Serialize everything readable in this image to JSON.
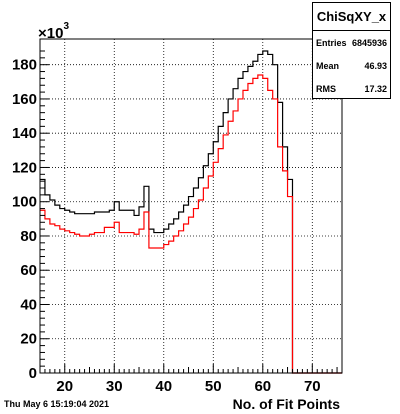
{
  "stats": {
    "title": "ChiSqXY_x",
    "rows": [
      {
        "key": "Entries",
        "value": "6845936"
      },
      {
        "key": "Mean",
        "value": "46.93"
      },
      {
        "key": "RMS",
        "value": "17.32"
      }
    ]
  },
  "footer": {
    "date": "Thu May  6 15:19:04 2021",
    "xtitle": "No. of Fit Points"
  },
  "axis": {
    "exponent_base": "×10",
    "exponent_power": "3"
  },
  "chart_data": {
    "type": "histogram",
    "xlim": [
      15,
      76
    ],
    "ylim": [
      0,
      195
    ],
    "xticks": [
      20,
      30,
      40,
      50,
      60,
      70
    ],
    "yticks": [
      0,
      20,
      40,
      60,
      80,
      100,
      120,
      140,
      160,
      180
    ],
    "grid": true,
    "bin_width": 1,
    "x_start": 15,
    "series": [
      {
        "color": "#000000",
        "values": [
          113,
          104,
          101,
          98,
          96,
          95,
          94,
          93,
          93,
          93,
          93,
          94,
          94,
          94,
          95,
          100,
          95,
          95,
          95,
          92,
          97,
          109,
          84,
          82,
          82,
          84,
          87,
          90,
          94,
          98,
          103,
          108,
          114,
          121,
          128,
          135,
          144,
          152,
          160,
          166,
          172,
          176,
          179,
          182,
          186,
          188,
          186,
          180,
          158,
          132,
          113,
          0,
          0,
          0,
          0,
          0,
          0,
          0,
          0,
          0,
          0
        ]
      },
      {
        "color": "#ff0000",
        "values": [
          95,
          90,
          87,
          86,
          84,
          83,
          82,
          81,
          80,
          80,
          81,
          82,
          82,
          85,
          85,
          88,
          82,
          82,
          82,
          81,
          84,
          94,
          73,
          73,
          73,
          75,
          77,
          80,
          83,
          87,
          91,
          96,
          101,
          108,
          115,
          123,
          131,
          139,
          147,
          153,
          160,
          165,
          169,
          172,
          174,
          172,
          165,
          160,
          132,
          118,
          103,
          0,
          0,
          0,
          0,
          0,
          0,
          0,
          0,
          0,
          0
        ]
      }
    ]
  }
}
